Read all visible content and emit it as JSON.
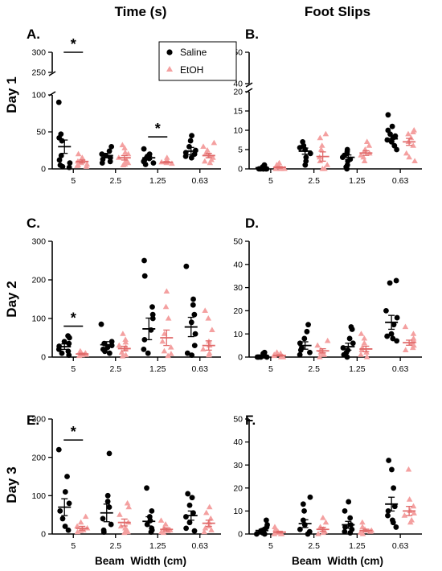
{
  "column_titles": [
    "Time (s)",
    "Foot Slips"
  ],
  "row_titles": [
    "Day 1",
    "Day 2",
    "Day 3"
  ],
  "x_axis_title": "Beam  Width (cm)",
  "legend": {
    "entries": [
      {
        "label": "Saline",
        "color": "#000000",
        "marker": "circle"
      },
      {
        "label": "EtOH",
        "color": "#f4a0a0",
        "marker": "triangle"
      }
    ]
  },
  "colors": {
    "saline": "#000000",
    "etoh": "#f4a0a0",
    "etoh_mean": "#e06a6a"
  },
  "significance_marker": "*",
  "chart_data": [
    {
      "panel": "A.",
      "type": "scatter",
      "measure": "Time (s)",
      "day": "Day 1",
      "categories": [
        "5",
        "2.5",
        "1.25",
        "0.63"
      ],
      "y_axis": {
        "broken": true,
        "lower": {
          "range": [
            0,
            100
          ],
          "ticks": [
            0,
            50,
            100
          ]
        },
        "upper": {
          "range": [
            250,
            300
          ],
          "ticks": [
            250,
            300
          ]
        }
      },
      "series": [
        {
          "name": "Saline",
          "points": [
            [
              90,
              47,
              42,
              38,
              18,
              12,
              8,
              5,
              3,
              2
            ],
            [
              30,
              24,
              20,
              18,
              15,
              13,
              10,
              8
            ],
            [
              27,
              20,
              17,
              15,
              14,
              12,
              10,
              8,
              6
            ],
            [
              45,
              38,
              30,
              25,
              22,
              20,
              17,
              15
            ]
          ],
          "mean": [
            30,
            18,
            15,
            24
          ],
          "sem": [
            9,
            3,
            2,
            5
          ]
        },
        {
          "name": "EtOH",
          "points": [
            [
              20,
              15,
              12,
              10,
              8,
              6,
              5,
              4,
              3
            ],
            [
              32,
              28,
              22,
              20,
              15,
              12,
              10,
              8,
              6,
              5
            ],
            [
              15,
              12,
              10,
              9,
              8,
              7
            ],
            [
              35,
              30,
              25,
              22,
              18,
              15,
              12,
              10,
              8
            ]
          ],
          "mean": [
            10,
            15,
            9,
            18
          ],
          "sem": [
            2,
            3,
            1,
            3
          ]
        }
      ],
      "significance": [
        {
          "category": "5",
          "label": "*"
        },
        {
          "category": "1.25",
          "label": "*"
        }
      ]
    },
    {
      "panel": "B.",
      "type": "scatter",
      "measure": "Foot Slips",
      "day": "Day 1",
      "categories": [
        "5",
        "2.5",
        "1.25",
        "0.63"
      ],
      "y_axis": {
        "broken": true,
        "lower": {
          "range": [
            0,
            20
          ],
          "ticks": [
            0,
            5,
            10,
            15,
            20
          ]
        },
        "upper": {
          "range": [
            40,
            50
          ],
          "ticks": [
            40,
            50
          ]
        }
      },
      "series": [
        {
          "name": "Saline",
          "points": [
            [
              1,
              0.5,
              0,
              0,
              0,
              0,
              0,
              0
            ],
            [
              7,
              6,
              5.5,
              5,
              4,
              3,
              2,
              1
            ],
            [
              5,
              4.5,
              4,
              3.5,
              3,
              2.5,
              2,
              1,
              0.5,
              0
            ],
            [
              14,
              11,
              10,
              9,
              8.5,
              8,
              7.5,
              7,
              6,
              5
            ]
          ],
          "mean": [
            0.3,
            4.6,
            3.0,
            7.8
          ],
          "sem": [
            0.2,
            0.8,
            0.6,
            0.8
          ]
        },
        {
          "name": "EtOH",
          "points": [
            [
              1.5,
              1,
              0.5,
              0,
              0,
              0,
              0
            ],
            [
              9,
              8,
              6,
              5,
              3,
              2,
              1,
              0,
              0
            ],
            [
              7,
              6,
              5,
              4.5,
              4,
              3.5,
              3,
              2
            ],
            [
              10,
              9.5,
              9,
              8,
              7,
              6,
              4,
              3,
              2
            ]
          ],
          "mean": [
            0.4,
            3.2,
            4.1,
            7.0
          ],
          "sem": [
            0.2,
            1.2,
            0.6,
            0.9
          ]
        }
      ]
    },
    {
      "panel": "C.",
      "type": "scatter",
      "measure": "Time (s)",
      "day": "Day 2",
      "categories": [
        "5",
        "2.5",
        "1.25",
        "0.63"
      ],
      "y_axis": {
        "range": [
          0,
          300
        ],
        "ticks": [
          0,
          100,
          200,
          300
        ]
      },
      "series": [
        {
          "name": "Saline",
          "points": [
            [
              55,
              50,
              40,
              35,
              28,
              20,
              15,
              10,
              5
            ],
            [
              85,
              40,
              35,
              30,
              25,
              20,
              15,
              10
            ],
            [
              250,
              210,
              130,
              110,
              100,
              70,
              45,
              20,
              10
            ],
            [
              235,
              150,
              135,
              110,
              90,
              60,
              30,
              10,
              5
            ]
          ],
          "mean": [
            27,
            32,
            73,
            78
          ],
          "sem": [
            7,
            8,
            28,
            25
          ]
        },
        {
          "name": "EtOH",
          "points": [
            [
              15,
              12,
              10,
              8,
              6,
              5,
              3
            ],
            [
              60,
              45,
              38,
              30,
              25,
              20,
              12,
              5,
              2
            ],
            [
              170,
              130,
              100,
              60,
              40,
              25,
              15,
              8,
              3
            ],
            [
              120,
              100,
              70,
              40,
              30,
              20,
              10,
              5
            ]
          ],
          "mean": [
            8,
            22,
            50,
            30
          ],
          "sem": [
            2,
            6,
            20,
            12
          ]
        }
      ],
      "significance": [
        {
          "category": "5",
          "label": "*"
        }
      ]
    },
    {
      "panel": "D.",
      "type": "scatter",
      "measure": "Foot Slips",
      "day": "Day 2",
      "categories": [
        "5",
        "2.5",
        "1.25",
        "0.63"
      ],
      "y_axis": {
        "range": [
          0,
          50
        ],
        "ticks": [
          0,
          10,
          20,
          30,
          40,
          50
        ]
      },
      "series": [
        {
          "name": "Saline",
          "points": [
            [
              2,
              1.5,
              1,
              0.5,
              0,
              0,
              0,
              0
            ],
            [
              14,
              11,
              8,
              6,
              4,
              3,
              2,
              1
            ],
            [
              13,
              12,
              8,
              6,
              4,
              3,
              2,
              1,
              0
            ],
            [
              33,
              32,
              20,
              17,
              14,
              10,
              9,
              8,
              7
            ]
          ],
          "mean": [
            0.6,
            5,
            4.5,
            15
          ],
          "sem": [
            0.3,
            1.6,
            1.5,
            3
          ]
        },
        {
          "name": "EtOH",
          "points": [
            [
              2,
              1.5,
              1,
              0.5,
              0,
              0,
              0
            ],
            [
              7,
              5,
              3,
              2,
              1,
              1,
              0
            ],
            [
              10,
              8,
              6,
              4,
              3,
              2,
              1,
              0
            ],
            [
              13,
              10,
              8,
              7,
              6,
              5,
              4,
              3
            ]
          ],
          "mean": [
            0.7,
            2.7,
            3.5,
            6.2
          ],
          "sem": [
            0.3,
            0.9,
            1.2,
            1.1
          ]
        }
      ]
    },
    {
      "panel": "E.",
      "type": "scatter",
      "measure": "Time (s)",
      "day": "Day 3",
      "categories": [
        "5",
        "2.5",
        "1.25",
        "0.63"
      ],
      "y_axis": {
        "range": [
          0,
          300
        ],
        "ticks": [
          0,
          100,
          200,
          300
        ]
      },
      "series": [
        {
          "name": "Saline",
          "points": [
            [
              220,
              150,
              110,
              80,
              60,
              40,
              20,
              10
            ],
            [
              210,
              100,
              85,
              70,
              40,
              25,
              10,
              5
            ],
            [
              120,
              60,
              45,
              35,
              25,
              15,
              10,
              5
            ],
            [
              105,
              95,
              75,
              55,
              45,
              30,
              15,
              8
            ]
          ],
          "mean": [
            70,
            55,
            33,
            48
          ],
          "sem": [
            22,
            23,
            12,
            12
          ]
        },
        {
          "name": "EtOH",
          "points": [
            [
              45,
              30,
              20,
              15,
              10,
              8,
              5
            ],
            [
              80,
              70,
              50,
              30,
              20,
              15,
              10,
              5,
              3
            ],
            [
              35,
              25,
              15,
              10,
              8,
              5,
              3
            ],
            [
              70,
              55,
              40,
              30,
              20,
              15,
              10,
              5
            ]
          ],
          "mean": [
            15,
            30,
            12,
            28
          ],
          "sem": [
            5,
            9,
            4,
            8
          ]
        }
      ],
      "significance": [
        {
          "category": "5",
          "label": "*"
        }
      ]
    },
    {
      "panel": "F.",
      "type": "scatter",
      "measure": "Foot Slips",
      "day": "Day 3",
      "categories": [
        "5",
        "2.5",
        "1.25",
        "0.63"
      ],
      "y_axis": {
        "range": [
          0,
          50
        ],
        "ticks": [
          0,
          10,
          20,
          30,
          40,
          50
        ]
      },
      "series": [
        {
          "name": "Saline",
          "points": [
            [
              6,
              4,
              3,
              2,
              1.5,
              1,
              0.5,
              0,
              0
            ],
            [
              16,
              13,
              10,
              6,
              4,
              2,
              1,
              0
            ],
            [
              14,
              10,
              7,
              4,
              3,
              2,
              1,
              0.5
            ],
            [
              32,
              28,
              20,
              12,
              10,
              8,
              6,
              5,
              3
            ]
          ],
          "mean": [
            1.5,
            4.5,
            4,
            13
          ],
          "sem": [
            0.6,
            1.7,
            1.5,
            3
          ]
        },
        {
          "name": "EtOH",
          "points": [
            [
              3,
              2,
              1,
              0.5,
              0,
              0,
              0
            ],
            [
              7,
              5,
              3,
              2,
              1,
              0.5,
              0
            ],
            [
              5,
              3,
              2,
              1.5,
              1,
              0.5,
              0
            ],
            [
              28,
              15,
              12,
              10,
              9,
              8,
              6,
              5
            ]
          ],
          "mean": [
            0.8,
            2,
            1.5,
            10
          ],
          "sem": [
            0.4,
            0.9,
            0.6,
            2
          ]
        }
      ]
    }
  ]
}
